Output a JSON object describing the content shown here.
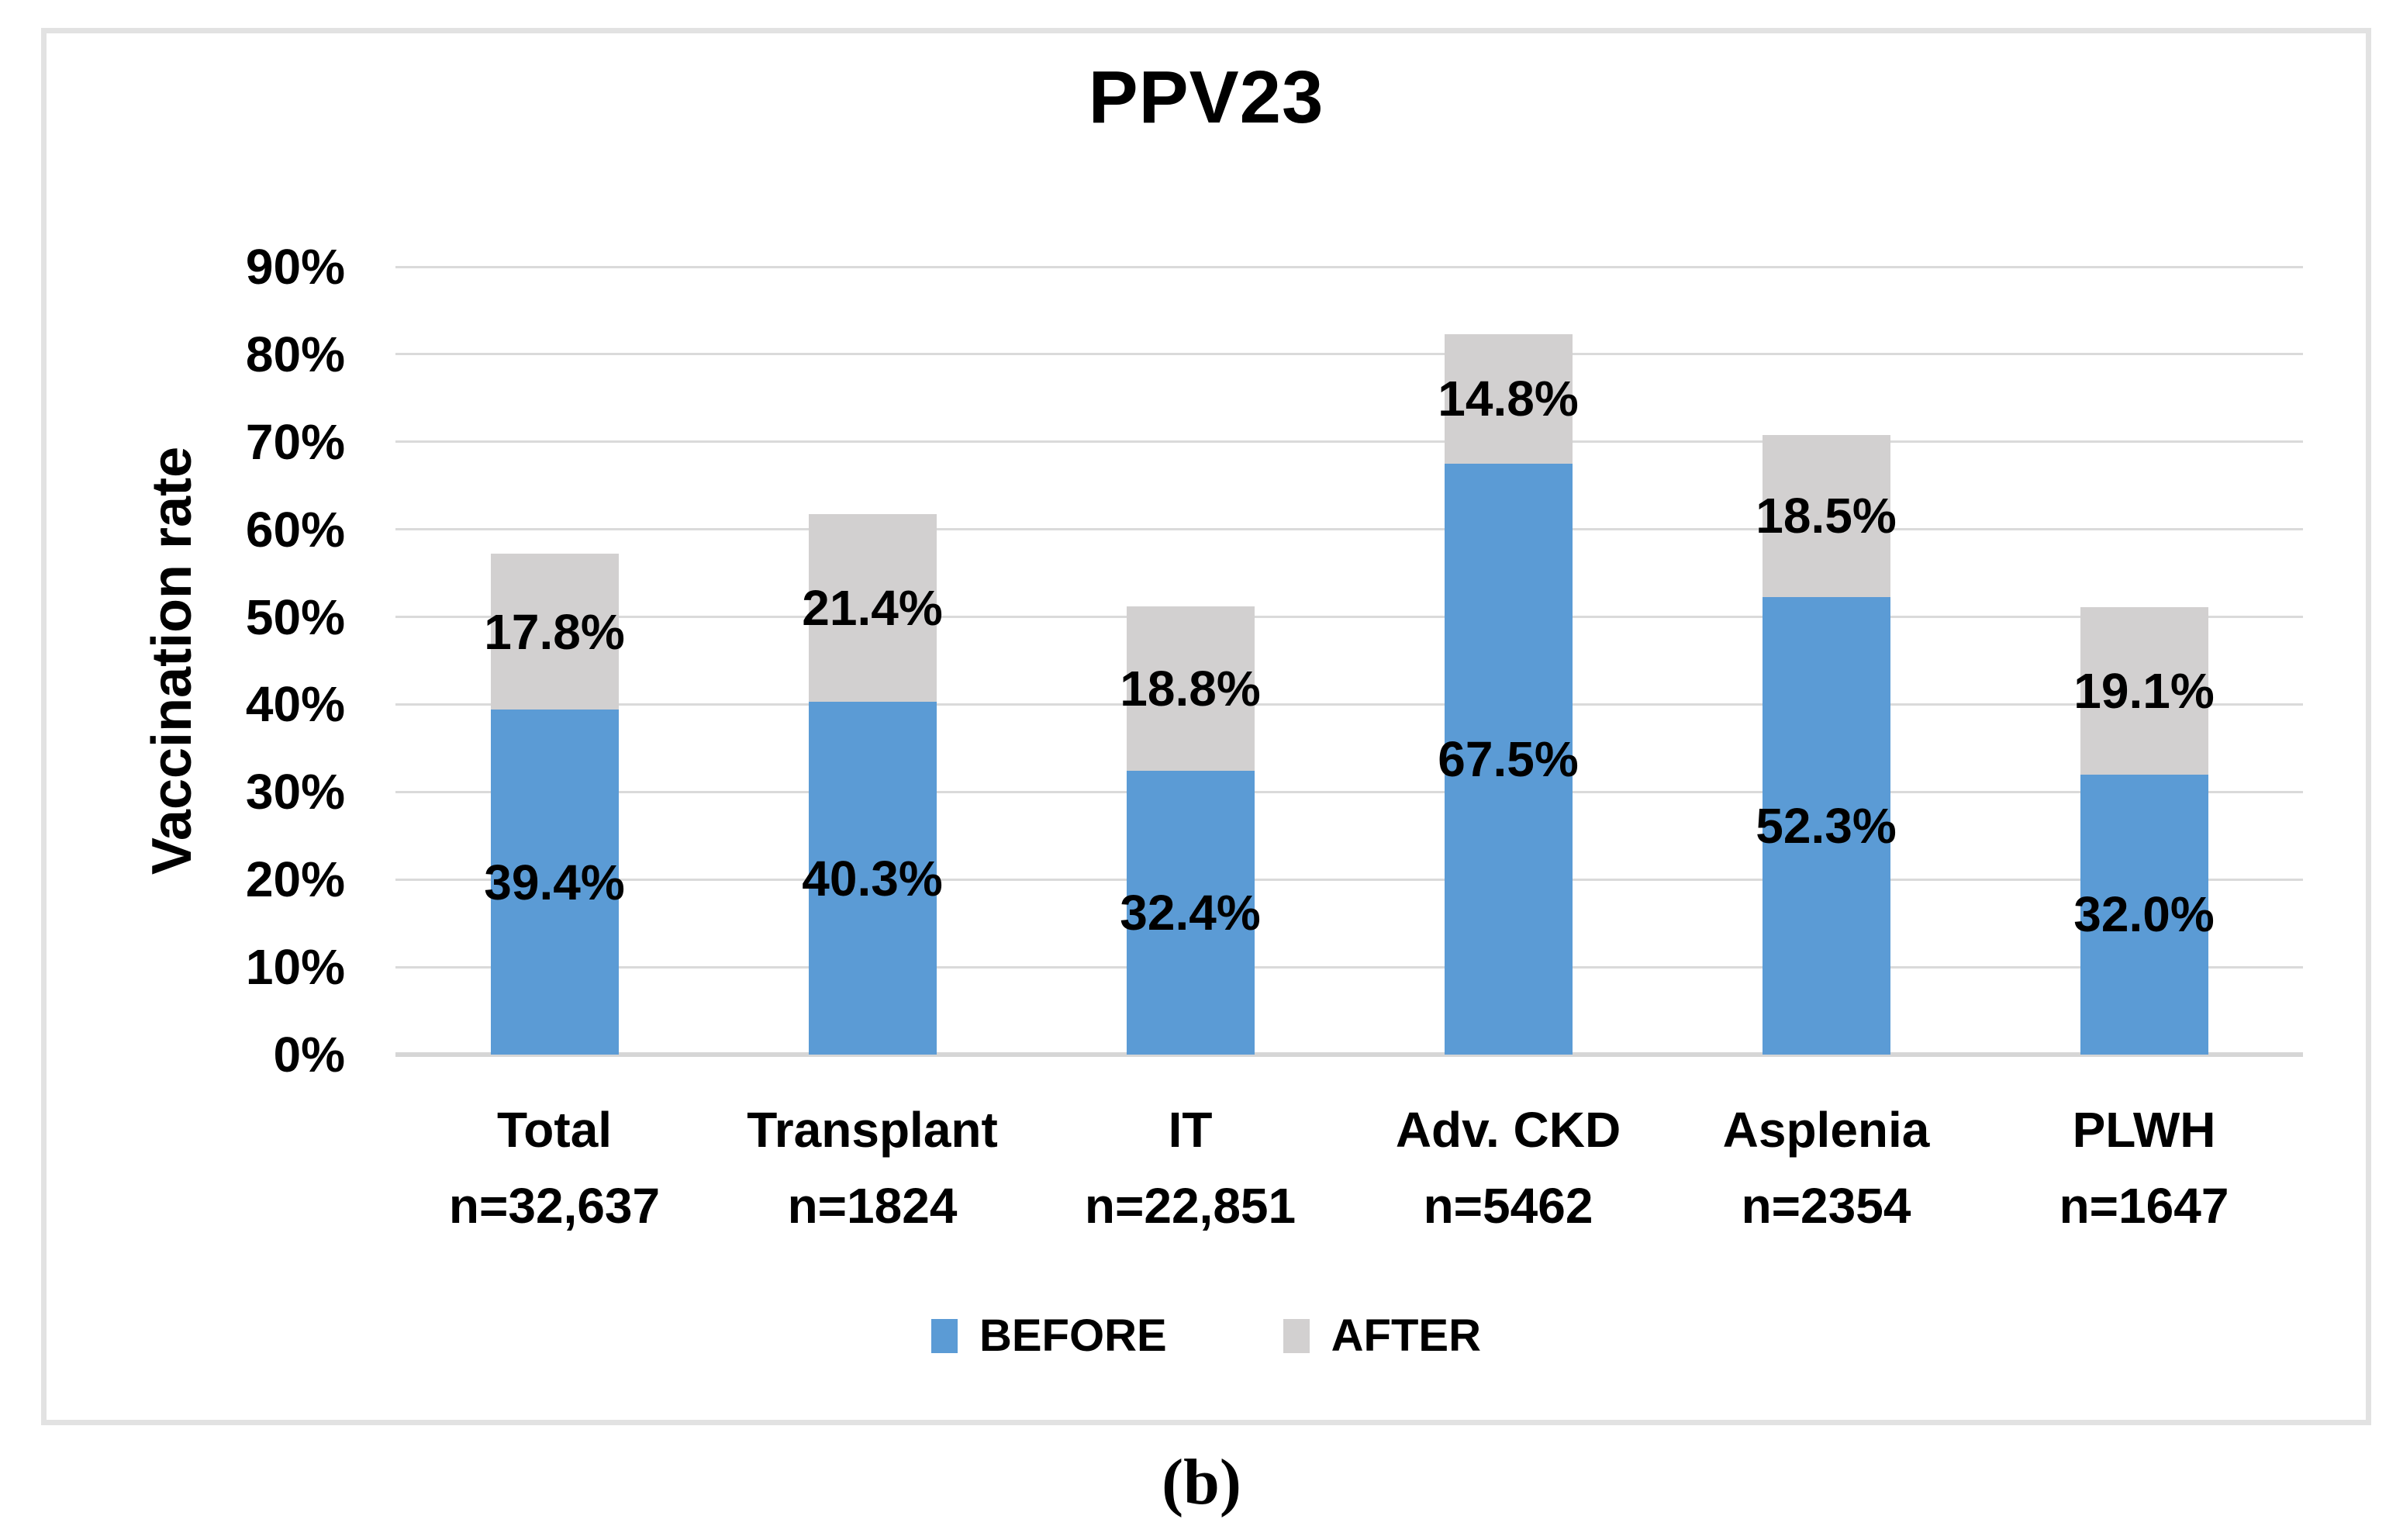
{
  "figure": {
    "title": "PPV23",
    "y_axis_label": "Vaccination rate",
    "caption": "(b)"
  },
  "chart_data": {
    "type": "bar",
    "stacked": true,
    "title": "PPV23",
    "xlabel": "",
    "ylabel": "Vaccination rate",
    "ylim": [
      0,
      90
    ],
    "ytick_step": 10,
    "grid": true,
    "legend_position": "bottom-center",
    "ytick_labels": [
      "0%",
      "10%",
      "20%",
      "30%",
      "40%",
      "50%",
      "60%",
      "70%",
      "80%",
      "90%"
    ],
    "categories": [
      "Total",
      "Transplant",
      "IT",
      "Adv. CKD",
      "Asplenia",
      "PLWH"
    ],
    "category_counts": [
      "n=32,637",
      "n=1824",
      "n=22,851",
      "n=5462",
      "n=2354",
      "n=1647"
    ],
    "series": [
      {
        "name": "BEFORE",
        "color": "#5B9BD5",
        "values": [
          39.4,
          40.3,
          32.4,
          67.5,
          52.3,
          32.0
        ],
        "labels": [
          "39.4%",
          "40.3%",
          "32.4%",
          "67.5%",
          "52.3%",
          "32.0%"
        ]
      },
      {
        "name": "AFTER",
        "color": "#D2D0D0",
        "values": [
          17.8,
          21.4,
          18.8,
          14.8,
          18.5,
          19.1
        ],
        "labels": [
          "17.8%",
          "21.4%",
          "18.8%",
          "14.8%",
          "18.5%",
          "19.1%"
        ]
      }
    ]
  }
}
